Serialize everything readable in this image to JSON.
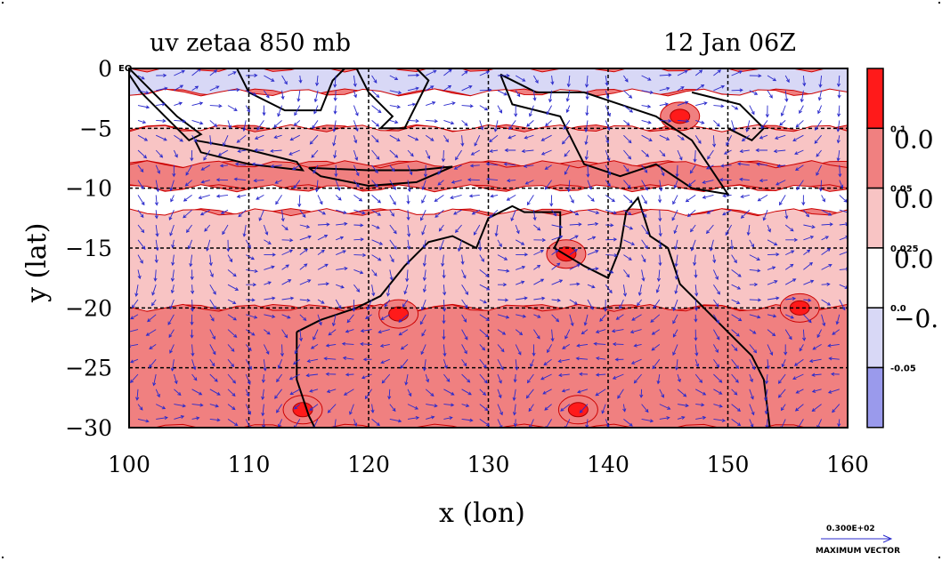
{
  "title_left": "uv zetaa 850 mb",
  "title_right": "12 Jan 06Z",
  "equator_label": "EQ",
  "colors": {
    "strong_pos": "#ff1a1a",
    "mid_pos": "#f08080",
    "light_pos": "#f8c4c4",
    "neutral": "#ffffff",
    "light_neg": "#d8d8f6",
    "neg": "#9a9aec",
    "coast": "#000000",
    "vector": "#2a2acc"
  },
  "colorbar": {
    "small_labels": [
      "0.1",
      "0.05",
      "0.025",
      "0.0",
      "-0.05"
    ],
    "big_labels": [
      "0.0",
      "0.0",
      "0.0",
      "−0."
    ]
  },
  "max_vector": {
    "value": "0.300E+02",
    "label": "MAXIMUM VECTOR"
  },
  "chart_data": {
    "type": "heatmap",
    "title": "uv zetaa 850 mb",
    "subtitle": "12 Jan 06Z",
    "xlabel": "x (lon)",
    "ylabel": "y (lat)",
    "xlim": [
      100,
      160
    ],
    "ylim": [
      -30,
      0
    ],
    "xticks": [
      "100",
      "110",
      "120",
      "130",
      "140",
      "150",
      "160"
    ],
    "yticks": [
      "0",
      "−5",
      "−10",
      "−15",
      "−20",
      "−25",
      "−30"
    ],
    "xtick_values": [
      100,
      110,
      120,
      130,
      140,
      150,
      160
    ],
    "ytick_values": [
      0,
      -5,
      -10,
      -15,
      -20,
      -25,
      -30
    ],
    "grid": true,
    "contour_levels": [
      -0.05,
      0.0,
      0.025,
      0.05,
      0.1
    ],
    "overlay": "wind vectors (u, v)",
    "field_bands": [
      {
        "lat_range": [
          0,
          -2
        ],
        "dominant_level": -0.05
      },
      {
        "lat_range": [
          -2,
          -5
        ],
        "dominant_level": 0.0
      },
      {
        "lat_range": [
          -5,
          -8
        ],
        "dominant_level": 0.025
      },
      {
        "lat_range": [
          -8,
          -10
        ],
        "dominant_level": 0.05
      },
      {
        "lat_range": [
          -10,
          -12
        ],
        "dominant_level": 0.0
      },
      {
        "lat_range": [
          -12,
          -20
        ],
        "dominant_level": 0.025
      },
      {
        "lat_range": [
          -20,
          -30
        ],
        "dominant_level": 0.05
      }
    ],
    "vorticity_maxima": [
      {
        "lon": 114.5,
        "lat": -28.5,
        "level": 0.1
      },
      {
        "lon": 122.5,
        "lat": -20.5,
        "level": 0.1
      },
      {
        "lon": 136.5,
        "lat": -15.5,
        "level": 0.1
      },
      {
        "lon": 137.5,
        "lat": -28.5,
        "level": 0.1
      },
      {
        "lon": 156.0,
        "lat": -20.0,
        "level": 0.1
      },
      {
        "lon": 146.0,
        "lat": -4.0,
        "level": 0.1
      }
    ]
  }
}
